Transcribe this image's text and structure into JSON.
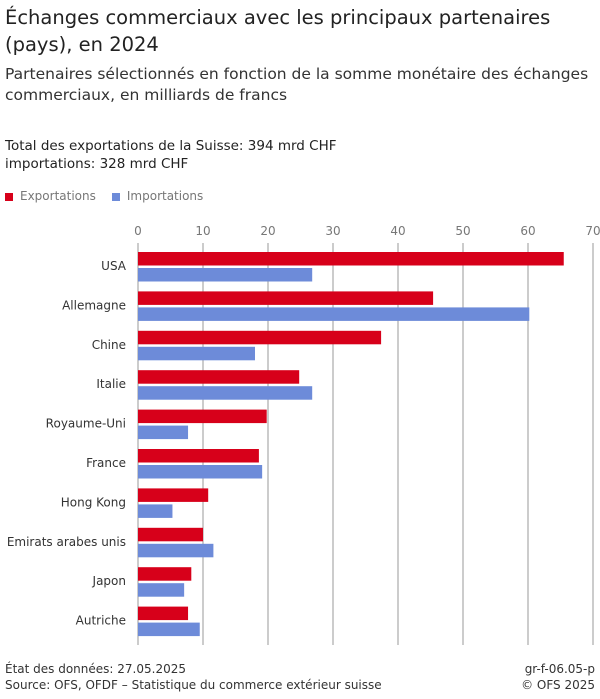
{
  "title": "Échanges commerciaux avec les principaux partenaires (pays), en 2024",
  "subtitle": "Partenaires sélectionnés en fonction de la somme monétaire des échanges commerciaux, en milliards de francs",
  "note": [
    "Total des exportations de la Suisse: 394 mrd CHF",
    "importations: 328 mrd CHF"
  ],
  "footer": {
    "left": [
      "État des données: 27.05.2025",
      "Source: OFS, OFDF – Statistique du commerce extérieur suisse"
    ],
    "right": [
      "gr-f-06.05-p",
      "© OFS 2025"
    ]
  },
  "chart_data": {
    "type": "bar",
    "orientation": "horizontal",
    "categories": [
      "USA",
      "Allemagne",
      "Chine",
      "Italie",
      "Royaume-Uni",
      "France",
      "Hong Kong",
      "Emirats arabes unis",
      "Japon",
      "Autriche"
    ],
    "series": [
      {
        "name": "Exportations",
        "color": "#d7001a",
        "values": [
          65.5,
          45.4,
          37.4,
          24.8,
          19.8,
          18.6,
          10.8,
          10.0,
          8.2,
          7.7
        ]
      },
      {
        "name": "Importations",
        "color": "#6d8bd9",
        "values": [
          26.8,
          60.2,
          18.0,
          26.8,
          7.7,
          19.1,
          5.3,
          11.6,
          7.1,
          9.5
        ]
      }
    ],
    "xlim": [
      0,
      70
    ],
    "ticks": [
      "0",
      "10",
      "20",
      "30",
      "40",
      "50",
      "60",
      "70"
    ],
    "tick_values": [
      0,
      10,
      20,
      30,
      40,
      50,
      60,
      70
    ],
    "axis_position": "top",
    "grid": true,
    "legend": "top-left"
  }
}
